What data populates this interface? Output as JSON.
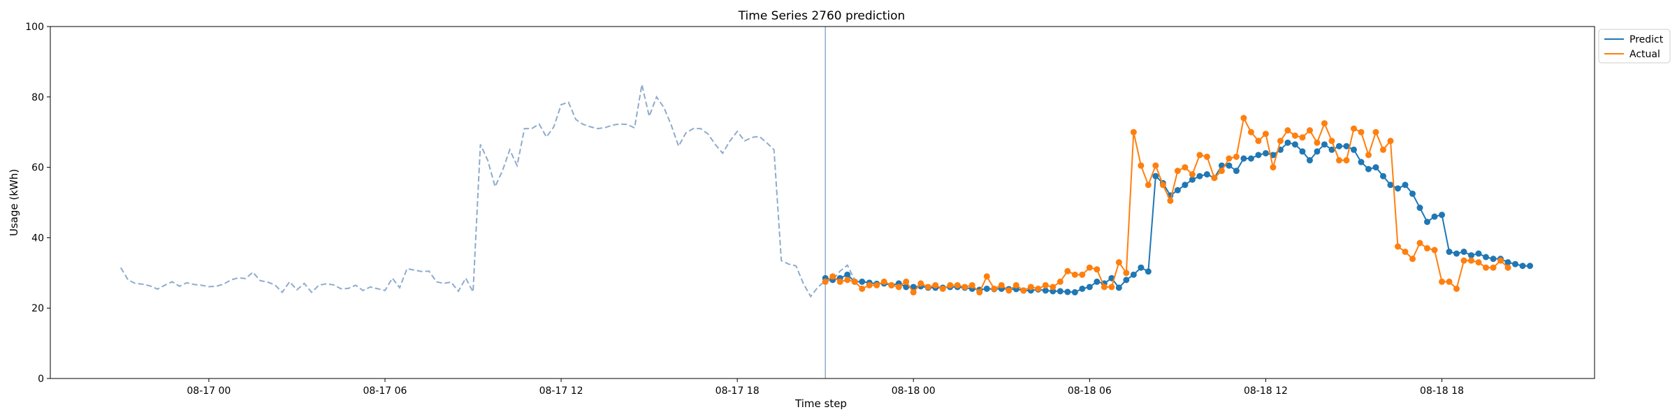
{
  "chart_data": {
    "type": "line",
    "title": "Time Series 2760 prediction",
    "xlabel": "Time step",
    "ylabel": "Usage (kWh)",
    "ylim": [
      0,
      100
    ],
    "yticks": [
      0,
      20,
      40,
      60,
      80,
      100
    ],
    "xticks": [
      {
        "label": "08-17 00",
        "t": 32
      },
      {
        "label": "08-17 06",
        "t": 38
      },
      {
        "label": "08-17 12",
        "t": 44
      },
      {
        "label": "08-17 18",
        "t": 50
      },
      {
        "label": "08-18 00",
        "t": 56
      },
      {
        "label": "08-18 06",
        "t": 62
      },
      {
        "label": "08-18 12",
        "t": 68
      },
      {
        "label": "08-18 18",
        "t": 74
      }
    ],
    "x_time_units": "hours since 08-16 00:00 (axis shows dates)",
    "xlim_hours": [
      26.6,
      79.2
    ],
    "grid": false,
    "legend_position": "top-right outside",
    "forecast_start_hour": 53.0,
    "history": {
      "start_hour": 29.0,
      "step_hours": 0.25,
      "color": "#8eabcd",
      "style": "dashed",
      "values": [
        31.5,
        28,
        27,
        26.8,
        26.3,
        25.4,
        26.5,
        27.5,
        26.2,
        27.2,
        26.7,
        26.5,
        26.1,
        26.2,
        26.8,
        28,
        28.6,
        28.4,
        30.2,
        27.8,
        27.4,
        26.6,
        24.5,
        27.5,
        25.2,
        27,
        24.5,
        26.5,
        26.9,
        26.6,
        25.5,
        25.6,
        26.5,
        25,
        26,
        25.5,
        25,
        28.5,
        25.8,
        31.2,
        30.8,
        30.4,
        30.5,
        27.5,
        27,
        27.4,
        24.8,
        28.5,
        24.6,
        66.5,
        62,
        54.5,
        59,
        65,
        60.5,
        71,
        71,
        72.3,
        68.6,
        71.5,
        77.8,
        78.5,
        73.6,
        72.2,
        71.5,
        71,
        71.3,
        72,
        72.3,
        72.2,
        71.2,
        83.5,
        74.5,
        80,
        77,
        72,
        66,
        69.8,
        71,
        71,
        69.5,
        66.5,
        64,
        67.5,
        70.2,
        67.5,
        68.5,
        68.8,
        67,
        65,
        33.5,
        32.5,
        32,
        27,
        23.3,
        26,
        27.7,
        28,
        30.5,
        32.2,
        28,
        27.5,
        27.4
      ]
    },
    "series": [
      {
        "name": "Predict",
        "color": "#1f77b4",
        "start_hour": 53.0,
        "step_hours": 0.25,
        "values": [
          28.5,
          28,
          28.5,
          29.5,
          27.5,
          27.5,
          27.2,
          26.9,
          27,
          26.5,
          27,
          26,
          26,
          26.2,
          25.8,
          25.8,
          25.8,
          26,
          26,
          25.8,
          25.5,
          25.2,
          25.5,
          25.4,
          25.5,
          25.4,
          25.4,
          25,
          25,
          25.3,
          25,
          24.8,
          24.8,
          24.6,
          24.5,
          25.5,
          26,
          27.5,
          27,
          28.5,
          25.8,
          28,
          29.5,
          31.5,
          30.4,
          57.5,
          55.5,
          52,
          53.5,
          55,
          56.5,
          57.5,
          58,
          57,
          60.5,
          60.5,
          59,
          62.5,
          62.5,
          63.5,
          64,
          63.5,
          65,
          67,
          66.5,
          64.5,
          62,
          64.5,
          66.5,
          65,
          66,
          66,
          65,
          61.5,
          59.5,
          60,
          57.5,
          55,
          54,
          55,
          52.5,
          48.5,
          44.5,
          46,
          46.5,
          36,
          35.5,
          36,
          35,
          35.5,
          34.5,
          34,
          34,
          33,
          32.5,
          32,
          32
        ]
      },
      {
        "name": "Actual",
        "color": "#ff7f0e",
        "start_hour": 53.0,
        "step_hours": 0.25,
        "values": [
          27.5,
          29,
          27.5,
          28,
          27.5,
          25.5,
          26.5,
          26.5,
          27.5,
          26.5,
          26,
          27.5,
          24.5,
          27,
          26,
          26.5,
          25.5,
          26.5,
          26.5,
          26,
          26.5,
          24.5,
          29,
          25.5,
          26.5,
          25,
          26.5,
          25,
          26,
          25.5,
          26.5,
          26,
          27.5,
          30.5,
          29.5,
          29.5,
          31.5,
          31,
          26,
          26,
          33,
          30,
          70,
          60.5,
          55,
          60.5,
          55,
          50.5,
          59,
          60,
          58,
          63.5,
          63,
          57,
          59,
          62.5,
          63,
          74,
          70,
          67.5,
          69.5,
          60,
          67.5,
          70.5,
          69,
          68.5,
          70.5,
          67,
          72.5,
          67.5,
          62,
          62,
          71,
          70,
          63.5,
          70,
          65,
          67.5,
          37.5,
          36,
          34,
          38.5,
          37,
          36.5,
          27.5,
          27.5,
          25.5,
          33.5,
          33.5,
          33,
          31.5,
          31.5,
          33.5,
          31.5
        ]
      }
    ]
  }
}
